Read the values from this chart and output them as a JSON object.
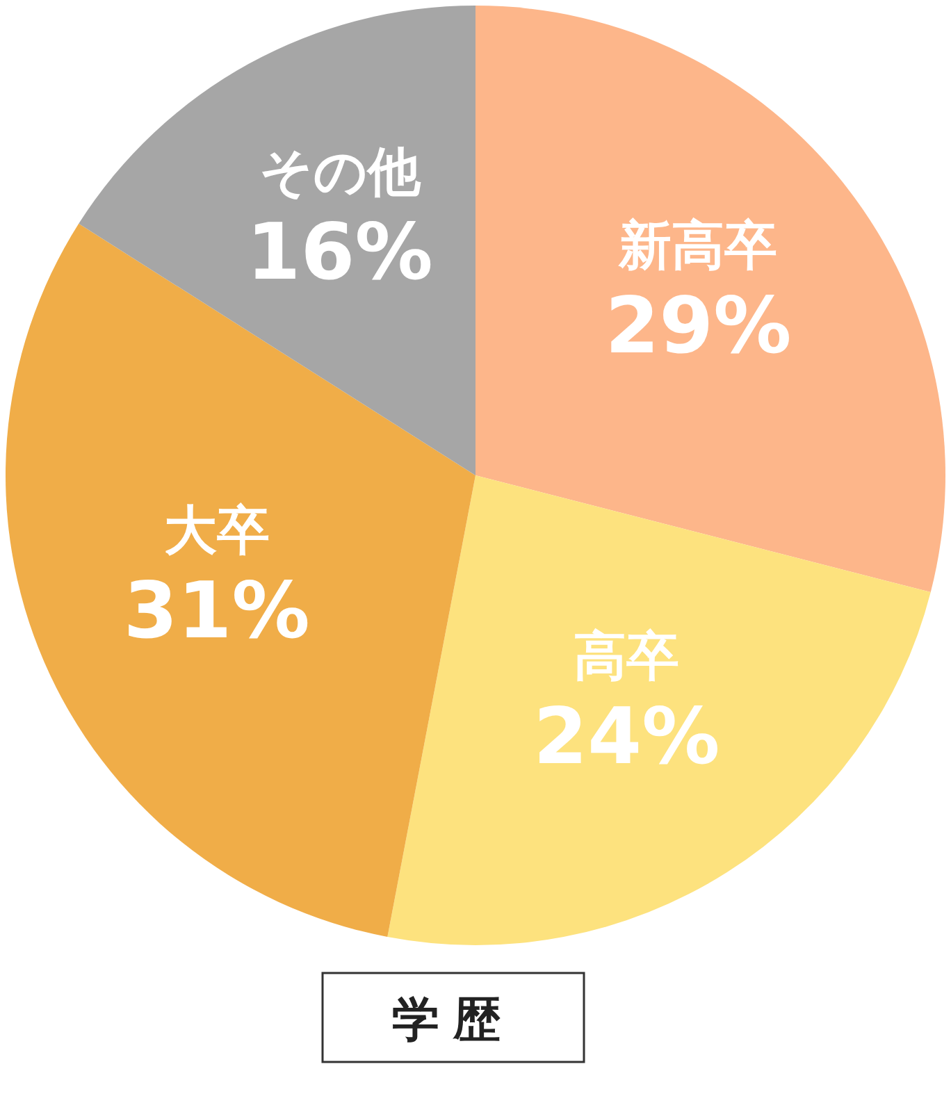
{
  "chart_data": {
    "type": "pie",
    "title": "学歴",
    "categories": [
      "新高卒",
      "高卒",
      "大卒",
      "その他"
    ],
    "values": [
      29,
      24,
      31,
      16
    ],
    "value_labels": [
      "29%",
      "24%",
      "31%",
      "16%"
    ],
    "colors": [
      "#fdb68a",
      "#fde27e",
      "#f0ad48",
      "#a6a6a6"
    ]
  }
}
